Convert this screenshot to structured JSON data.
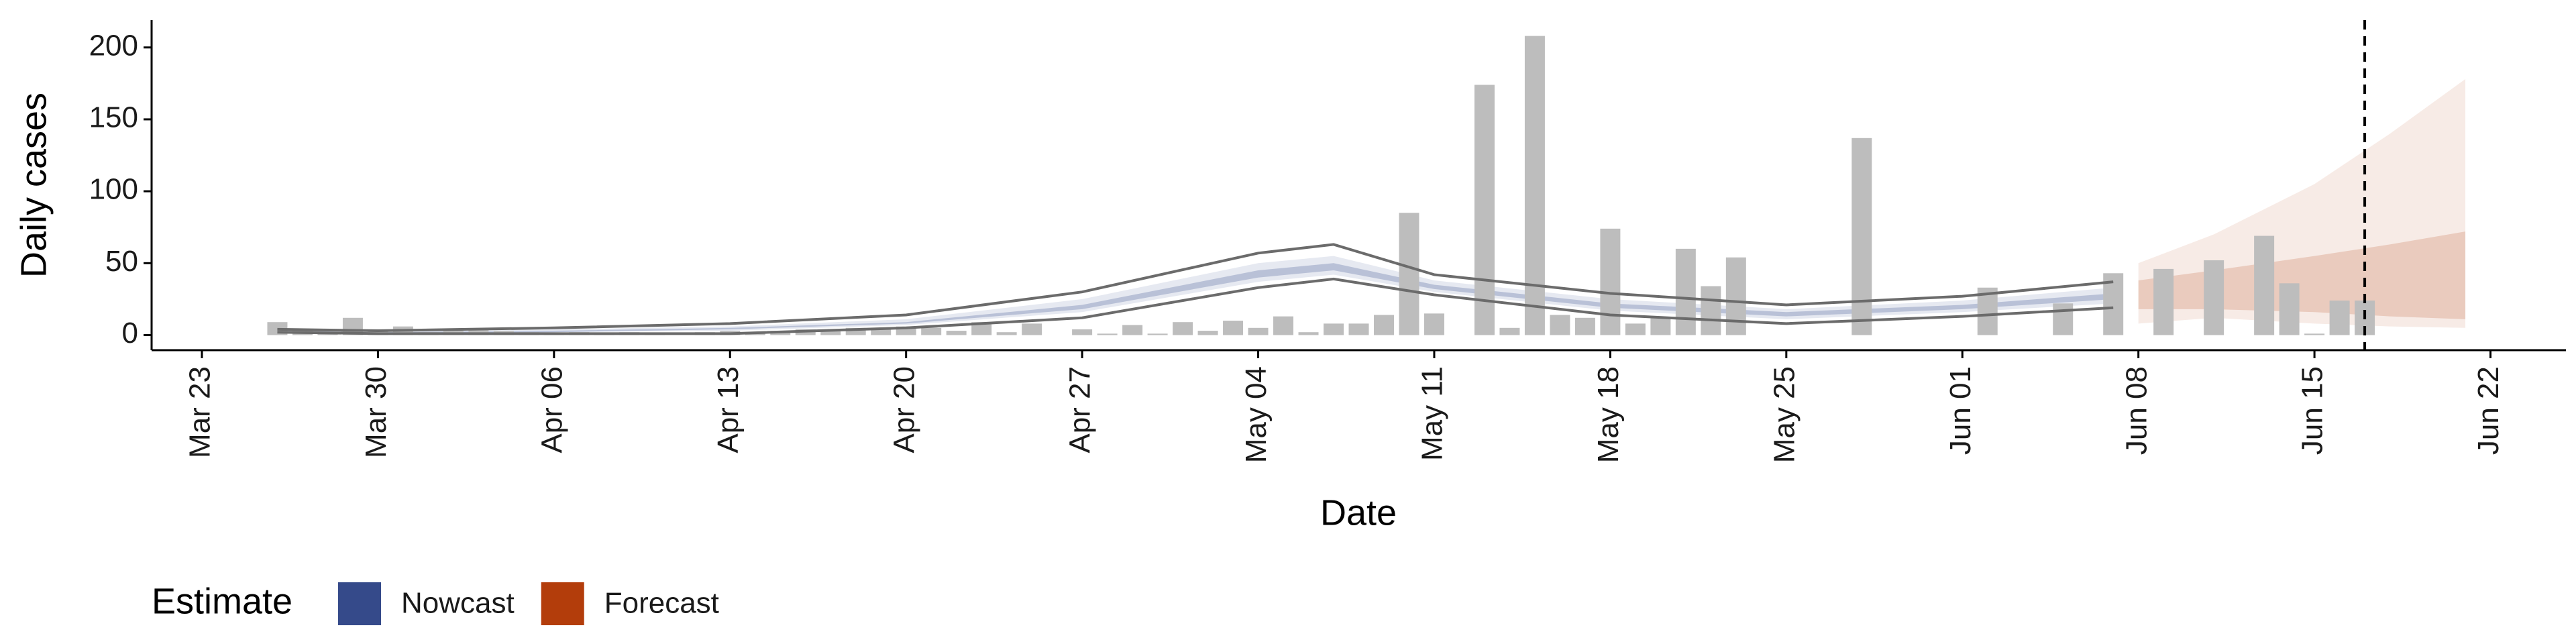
{
  "chart_data": {
    "type": "bar",
    "x_label": "Date",
    "y_label": "Daily cases",
    "color": "#bdbdbd",
    "x": [
      "Mar 26",
      "Mar 27",
      "Mar 28",
      "Mar 29",
      "Mar 30",
      "Mar 31",
      "Apr 01",
      "Apr 02",
      "Apr 03",
      "Apr 04",
      "Apr 05",
      "Apr 06",
      "Apr 07",
      "Apr 08",
      "Apr 09",
      "Apr 10",
      "Apr 11",
      "Apr 12",
      "Apr 13",
      "Apr 14",
      "Apr 15",
      "Apr 16",
      "Apr 17",
      "Apr 18",
      "Apr 19",
      "Apr 20",
      "Apr 21",
      "Apr 22",
      "Apr 23",
      "Apr 24",
      "Apr 25",
      "Apr 26",
      "Apr 27",
      "Apr 28",
      "Apr 29",
      "Apr 30",
      "May 01",
      "May 02",
      "May 03",
      "May 04",
      "May 05",
      "May 06",
      "May 07",
      "May 08",
      "May 09",
      "May 10",
      "May 11",
      "May 12",
      "May 13",
      "May 14",
      "May 15",
      "May 16",
      "May 17",
      "May 18",
      "May 19",
      "May 20",
      "May 21",
      "May 22",
      "May 23",
      "May 24",
      "May 25",
      "May 26",
      "May 27",
      "May 28",
      "May 29",
      "May 30",
      "May 31",
      "Jun 01",
      "Jun 02",
      "Jun 03",
      "Jun 04",
      "Jun 05",
      "Jun 06",
      "Jun 07",
      "Jun 08",
      "Jun 09",
      "Jun 10",
      "Jun 11",
      "Jun 12",
      "Jun 13",
      "Jun 14",
      "Jun 15",
      "Jun 16",
      "Jun 17"
    ],
    "values": [
      9,
      3,
      2,
      12,
      3,
      6,
      2,
      3,
      4,
      3,
      2,
      1,
      2,
      1,
      2,
      1,
      0,
      2,
      3,
      2,
      3,
      4,
      3,
      5,
      4,
      6,
      5,
      3,
      9,
      2,
      8,
      0,
      4,
      1,
      7,
      1,
      9,
      3,
      10,
      5,
      13,
      2,
      8,
      8,
      14,
      85,
      15,
      0,
      174,
      5,
      208,
      14,
      12,
      74,
      8,
      12,
      60,
      34,
      54,
      0,
      0,
      0,
      0,
      137,
      0,
      0,
      0,
      0,
      33,
      0,
      0,
      22,
      0,
      43,
      0,
      46,
      0,
      52,
      0,
      69,
      36,
      1,
      24,
      24
    ],
    "bands": [
      {
        "name": "Nowcast",
        "color": "#354a8a",
        "x": [
          "Mar 26",
          "Mar 30",
          "Apr 06",
          "Apr 13",
          "Apr 20",
          "Apr 27",
          "May 04",
          "May 07",
          "May 11",
          "May 18",
          "May 25",
          "Jun 01",
          "Jun 07"
        ],
        "lower90": [
          2,
          1,
          2,
          3,
          7,
          16,
          37,
          42,
          30,
          17,
          11,
          16,
          22
        ],
        "upper90": [
          3,
          2,
          4,
          6,
          11,
          25,
          50,
          55,
          38,
          25,
          18,
          24,
          33
        ],
        "lower50": [
          2,
          1,
          2,
          4,
          8,
          18,
          40,
          45,
          32,
          19,
          13,
          18,
          25
        ],
        "upper50": [
          3,
          2,
          3,
          5,
          9,
          21,
          45,
          50,
          35,
          22,
          16,
          21,
          29
        ]
      },
      {
        "name": "Forecast",
        "color": "#b33d0b",
        "x": [
          "Jun 08",
          "Jun 11",
          "Jun 15",
          "Jun 18",
          "Jun 21"
        ],
        "lower90": [
          8,
          12,
          8,
          6,
          5
        ],
        "upper90": [
          50,
          70,
          105,
          140,
          178
        ],
        "lower50": [
          18,
          18,
          16,
          13,
          11
        ],
        "upper50": [
          38,
          45,
          55,
          63,
          72
        ]
      }
    ],
    "lines": [
      {
        "color": "#6b6b6b",
        "x": [
          "Mar 26",
          "Mar 30",
          "Apr 06",
          "Apr 13",
          "Apr 20",
          "Apr 27",
          "May 04",
          "May 07",
          "May 11",
          "May 18",
          "May 25",
          "Jun 01",
          "Jun 07"
        ],
        "values": [
          4,
          3,
          5,
          8,
          14,
          30,
          57,
          63,
          42,
          29,
          21,
          27,
          37
        ]
      },
      {
        "color": "#6b6b6b",
        "x": [
          "Mar 26",
          "Mar 30",
          "Apr 06",
          "Apr 13",
          "Apr 20",
          "Apr 27",
          "May 04",
          "May 07",
          "May 11",
          "May 18",
          "May 25",
          "Jun 01",
          "Jun 07"
        ],
        "values": [
          2,
          1,
          1,
          1,
          5,
          12,
          33,
          39,
          28,
          14,
          8,
          13,
          19
        ]
      }
    ],
    "vline": "Jun 17",
    "legend_title": "Estimate",
    "xlim": [
      "Mar 21",
      "Jun 25"
    ],
    "xticks": [
      "Mar 23",
      "Mar 30",
      "Apr 06",
      "Apr 13",
      "Apr 20",
      "Apr 27",
      "May 04",
      "May 11",
      "May 18",
      "May 25",
      "Jun 01",
      "Jun 08",
      "Jun 15",
      "Jun 22"
    ],
    "ylim": [
      -10.5,
      219
    ],
    "yticks": [
      0,
      50,
      100,
      150,
      200
    ]
  }
}
